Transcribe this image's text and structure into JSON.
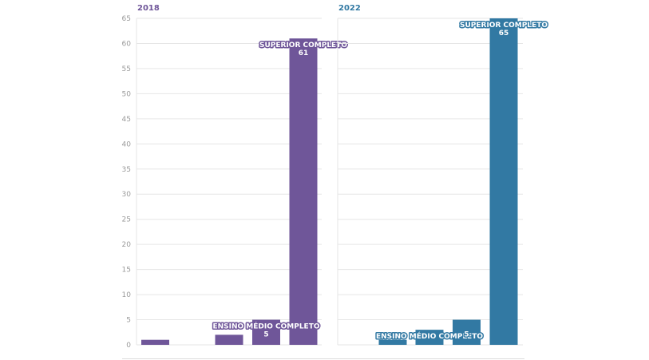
{
  "chart_data": [
    {
      "type": "bar",
      "title": "2018",
      "color": "#6f5699",
      "ylim": [
        0,
        65
      ],
      "yticks": [
        0,
        5,
        10,
        15,
        20,
        25,
        30,
        35,
        40,
        45,
        50,
        55,
        60,
        65
      ],
      "values": [
        1,
        0,
        2,
        5,
        61
      ],
      "data_labels": [
        {
          "index": 3,
          "name": "ENSINO MÉDIO COMPLETO",
          "value": "5"
        },
        {
          "index": 4,
          "name": "SUPERIOR COMPLETO",
          "value": "61"
        }
      ],
      "grid": true
    },
    {
      "type": "bar",
      "title": "2022",
      "color": "#3279a3",
      "ylim": [
        0,
        65
      ],
      "values": [
        0,
        1,
        3,
        5,
        65
      ],
      "data_labels": [
        {
          "index": 2,
          "name": "ENSINO MÉDIO COMPLETO",
          "value": ""
        },
        {
          "index": 3,
          "name": "",
          "value": "5"
        },
        {
          "index": 4,
          "name": "SUPERIOR COMPLETO",
          "value": "65"
        }
      ],
      "grid": true
    }
  ]
}
